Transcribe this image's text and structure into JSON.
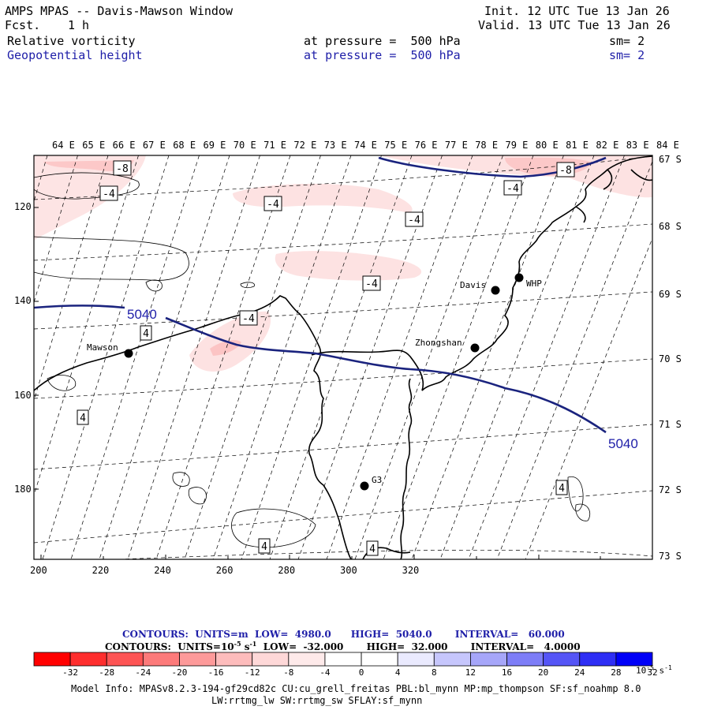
{
  "header": {
    "title": "AMPS MPAS -- Davis-Mawson Window",
    "forecast_label": "Fcst.",
    "forecast_value": "1 h",
    "init": "Init. 12 UTC Tue 13 Jan 26",
    "valid": "Valid. 13 UTC Tue 13 Jan 26",
    "field1": {
      "name": "Relative vorticity",
      "level": "at pressure =  500 hPa",
      "sm": "sm= 2"
    },
    "field2": {
      "name": "Geopotential height",
      "level": "at pressure =  500 hPa",
      "sm": "sm= 2"
    }
  },
  "axes": {
    "lon_labels": [
      "64 E",
      "65 E",
      "66 E",
      "67 E",
      "68 E",
      "69 E",
      "70 E",
      "71 E",
      "72 E",
      "73 E",
      "74 E",
      "75 E",
      "76 E",
      "77 E",
      "78 E",
      "79 E",
      "80 E",
      "81 E",
      "82 E",
      "83 E",
      "84 E"
    ],
    "lat_labels": [
      "67 S",
      "68 S",
      "69 S",
      "70 S",
      "71 S",
      "72 S",
      "73 S"
    ],
    "x_ticks": [
      "200",
      "220",
      "240",
      "260",
      "280",
      "300",
      "320"
    ],
    "y_ticks": [
      "120",
      "140",
      "160",
      "180"
    ]
  },
  "stations": [
    {
      "name": "Mawson"
    },
    {
      "name": "Davis"
    },
    {
      "name": "WHP"
    },
    {
      "name": "Zhongshan"
    },
    {
      "name": "G3"
    }
  ],
  "contour_labels": {
    "height": [
      "5040",
      "5040"
    ],
    "vorticity": [
      "-8",
      "-8",
      "-4",
      "-4",
      "-4",
      "-4",
      "-4",
      "-4",
      "4",
      "4",
      "4",
      "4",
      "4"
    ]
  },
  "contour_info": {
    "line1": "CONTOURS:  UNITS=m  LOW=  4980.0      HIGH=  5040.0       INTERVAL=   60.000",
    "line2": "CONTOURS:  UNITS=10",
    "line2_exp": "-5",
    "line2_unit": " s",
    "line2_unit_exp": "-1",
    "line2_rest": "  LOW=  -32.000       HIGH=  32.000       INTERVAL=   4.0000"
  },
  "colorbar": {
    "colors": [
      "#ff0000",
      "#fe2e2e",
      "#fd5454",
      "#fc7a7a",
      "#fd9a9a",
      "#fdbcbc",
      "#fed8d8",
      "#feeaea",
      "#ffffff",
      "#ffffff",
      "#eaeafe",
      "#c6c6fc",
      "#a6a6f9",
      "#7d7df7",
      "#5555f6",
      "#2e2ef4",
      "#0000f8"
    ],
    "labels": [
      "-32",
      "-28",
      "-24",
      "-20",
      "-16",
      "-12",
      "-8",
      "-4",
      "0",
      "4",
      "8",
      "12",
      "16",
      "20",
      "24",
      "28",
      "32"
    ],
    "unit": "10",
    "unit_exp": "-5",
    "unit_s": " s",
    "unit_s_exp": "-1"
  },
  "footer": {
    "line1": "Model Info: MPASv8.2.3-194-gf29cd82c CU:cu_grell_freitas PBL:bl_mynn MP:mp_thompson SF:sf_noahmp 8.0",
    "line2": "LW:rrtmg_lw SW:rrtmg_sw SFLAY:sf_mynn"
  }
}
